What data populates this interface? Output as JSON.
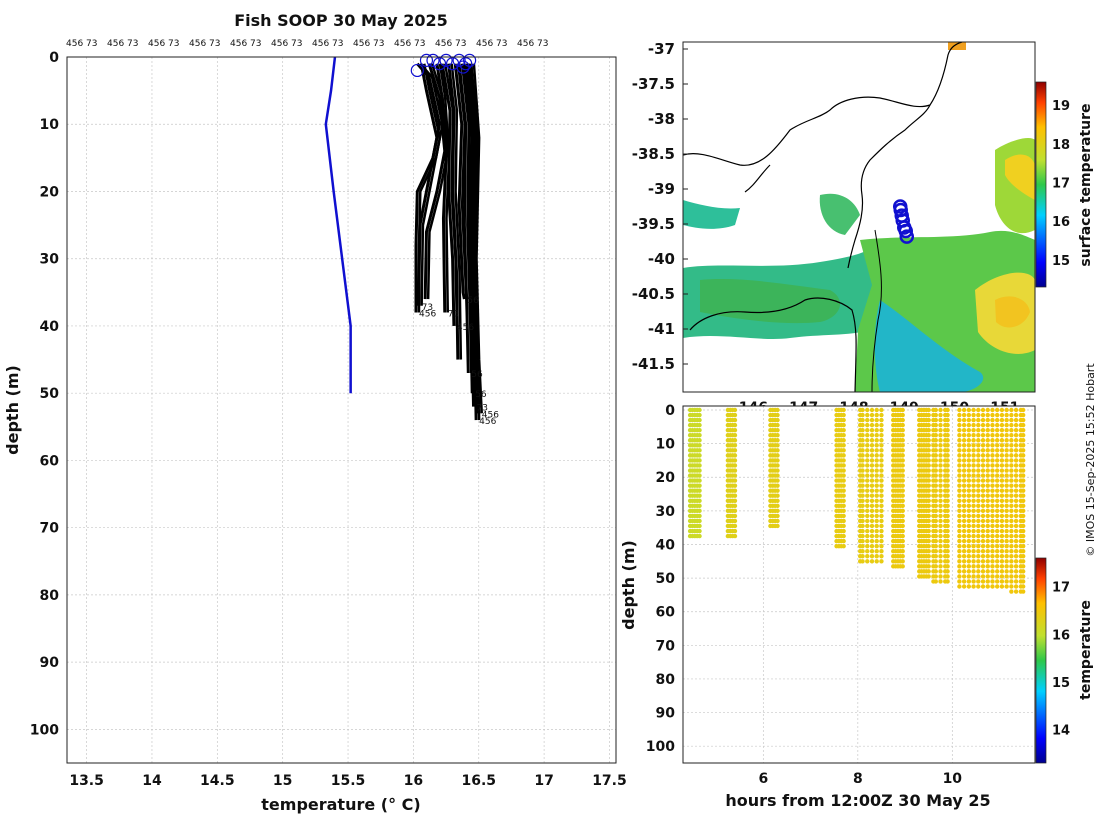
{
  "title": "Fish SOOP 30 May 2025",
  "credit": "© IMOS 15-Sep-2025 15:52 Hobart",
  "chart_data": [
    {
      "type": "line",
      "name": "temperature-depth-profiles",
      "xlabel": "temperature (° C)",
      "ylabel": "depth (m)",
      "xlim": [
        13.35,
        17.55
      ],
      "ylim": [
        0,
        105
      ],
      "xticks": [
        "13.5",
        "14",
        "14.5",
        "15",
        "15.5",
        "16",
        "16.5",
        "17",
        "17.5"
      ],
      "yticks": [
        "0",
        "10",
        "20",
        "30",
        "40",
        "50",
        "60",
        "70",
        "80",
        "90",
        "100"
      ],
      "top_labels": [
        "456 73",
        "456 73",
        "456 73",
        "456 73",
        "456 73",
        "456 73",
        "456 73",
        "456 73",
        "456 73",
        "456 73",
        "456 73",
        "456 73"
      ],
      "reference_profile": {
        "color": "#1010d0",
        "temperature": [
          15.4,
          15.37,
          15.33,
          15.39,
          15.52,
          15.52
        ],
        "depth": [
          0,
          5,
          10,
          20,
          40,
          50
        ]
      },
      "profiles": [
        {
          "temperature": [
            16.03,
            16.12,
            16.2,
            16.15,
            16.03,
            16.02,
            16.02
          ],
          "depth": [
            1,
            3,
            10,
            15,
            20,
            28,
            38
          ],
          "end_label": "456",
          "label_color": "#000000"
        },
        {
          "temperature": [
            16.06,
            16.1,
            16.18,
            16.12,
            16.05,
            16.04
          ],
          "depth": [
            1,
            5,
            12,
            18,
            25,
            37
          ],
          "end_label": "73",
          "label_color": "#000000"
        },
        {
          "temperature": [
            16.12,
            16.2,
            16.24,
            16.18,
            16.1,
            16.09
          ],
          "depth": [
            1,
            6,
            14,
            20,
            26,
            36
          ],
          "end_label": "",
          "label_color": "#000000"
        },
        {
          "temperature": [
            16.18,
            16.22,
            16.25,
            16.23,
            16.24
          ],
          "depth": [
            1,
            6,
            15,
            24,
            38
          ],
          "end_label": "73",
          "label_color": "#000000"
        },
        {
          "temperature": [
            16.22,
            16.28,
            16.27,
            16.3,
            16.31
          ],
          "depth": [
            1,
            8,
            20,
            30,
            40
          ],
          "end_label": "456",
          "label_color": "#000000"
        },
        {
          "temperature": [
            16.27,
            16.31,
            16.3,
            16.33,
            16.34
          ],
          "depth": [
            1,
            8,
            20,
            32,
            45
          ],
          "end_label": "",
          "label_color": "#000000"
        },
        {
          "temperature": [
            16.32,
            16.37,
            16.35,
            16.38,
            16.39
          ],
          "depth": [
            1,
            10,
            22,
            35,
            36
          ],
          "end_label": "56",
          "label_color": "#000000"
        },
        {
          "temperature": [
            16.35,
            16.4,
            16.39,
            16.41,
            16.42
          ],
          "depth": [
            1,
            10,
            25,
            38,
            47
          ],
          "end_label": "56",
          "label_color": "#000000"
        },
        {
          "temperature": [
            16.38,
            16.43,
            16.42,
            16.44,
            16.45
          ],
          "depth": [
            1,
            10,
            25,
            40,
            50
          ],
          "end_label": "56",
          "label_color": "#000000"
        },
        {
          "temperature": [
            16.4,
            16.45,
            16.43,
            16.45,
            16.46
          ],
          "depth": [
            1,
            12,
            26,
            42,
            52
          ],
          "end_label": "73",
          "label_color": "#000000"
        },
        {
          "temperature": [
            16.42,
            16.47,
            16.45,
            16.47,
            16.48
          ],
          "depth": [
            1,
            12,
            28,
            44,
            54
          ],
          "end_label": "456",
          "label_color": "#000000"
        },
        {
          "temperature": [
            16.44,
            16.48,
            16.46,
            16.48,
            16.5
          ],
          "depth": [
            1,
            12,
            30,
            45,
            53
          ],
          "end_label": "456",
          "label_color": "#000000"
        }
      ],
      "surface_markers": [
        {
          "temperature": 16.03,
          "depth": 2
        },
        {
          "temperature": 16.1,
          "depth": 0.5
        },
        {
          "temperature": 16.15,
          "depth": 0.5
        },
        {
          "temperature": 16.2,
          "depth": 1
        },
        {
          "temperature": 16.25,
          "depth": 0.5
        },
        {
          "temperature": 16.3,
          "depth": 1
        },
        {
          "temperature": 16.35,
          "depth": 0.5
        },
        {
          "temperature": 16.4,
          "depth": 1
        },
        {
          "temperature": 16.43,
          "depth": 0.5
        },
        {
          "temperature": 16.38,
          "depth": 1.5
        }
      ]
    },
    {
      "type": "heatmap",
      "name": "sea-surface-temperature-map",
      "colorbar_label": "surface temperature",
      "colorbar_ticks": [
        "15",
        "16",
        "17",
        "18",
        "19"
      ],
      "colorbar_range": [
        14.3,
        19.6
      ],
      "yticks": [
        "-37",
        "-37.5",
        "-38",
        "-38.5",
        "-39",
        "-39.5",
        "-40",
        "-40.5",
        "-41",
        "-41.5"
      ],
      "ylim": [
        -41.9,
        -36.9
      ],
      "xlim": [
        144.6,
        151.6
      ],
      "xticks": [
        "146",
        "147",
        "148",
        "149",
        "150",
        "151"
      ],
      "track_color": "#1010d0"
    },
    {
      "type": "scatter",
      "name": "depth-time-section",
      "xlabel": "hours from 12:00Z 30 May 25",
      "ylabel": "depth (m)",
      "xlim": [
        4.3,
        11.75
      ],
      "ylim": [
        0,
        105
      ],
      "xticks": [
        "6",
        "8",
        "10"
      ],
      "yticks": [
        "0",
        "10",
        "20",
        "30",
        "40",
        "50",
        "60",
        "70",
        "80",
        "90",
        "100"
      ],
      "colorbar_label": "temperature",
      "colorbar_ticks": [
        "14",
        "15",
        "16",
        "17"
      ],
      "colorbar_range": [
        13.3,
        17.6
      ],
      "casts": [
        {
          "hours": [
            4.45,
            4.5,
            4.55,
            4.6,
            4.65
          ],
          "max_depth": 38,
          "temperature": 16.1
        },
        {
          "hours": [
            5.25,
            5.3,
            5.35,
            5.4
          ],
          "max_depth": 38,
          "temperature": 16.3
        },
        {
          "hours": [
            6.15,
            6.2,
            6.25,
            6.3
          ],
          "max_depth": 35,
          "temperature": 16.35
        },
        {
          "hours": [
            7.55,
            7.6,
            7.65,
            7.7
          ],
          "max_depth": 41,
          "temperature": 16.4
        },
        {
          "hours": [
            8.05,
            8.1,
            8.2,
            8.3,
            8.4,
            8.5
          ],
          "max_depth": 45,
          "temperature": 16.4
        },
        {
          "hours": [
            8.75,
            8.8,
            8.85,
            8.9,
            8.95
          ],
          "max_depth": 47,
          "temperature": 16.45
        },
        {
          "hours": [
            9.3,
            9.35,
            9.4,
            9.45,
            9.5
          ],
          "max_depth": 50,
          "temperature": 16.45
        },
        {
          "hours": [
            9.6,
            9.65,
            9.75,
            9.85,
            9.9
          ],
          "max_depth": 51,
          "temperature": 16.45
        },
        {
          "hours": [
            10.15,
            10.25,
            10.35,
            10.45,
            10.55,
            10.65
          ],
          "max_depth": 53,
          "temperature": 16.5
        },
        {
          "hours": [
            10.75,
            10.85,
            10.95,
            11.05,
            11.15
          ],
          "max_depth": 53,
          "temperature": 16.5
        },
        {
          "hours": [
            11.25,
            11.35,
            11.45,
            11.5
          ],
          "max_depth": 54,
          "temperature": 16.5
        }
      ]
    }
  ]
}
